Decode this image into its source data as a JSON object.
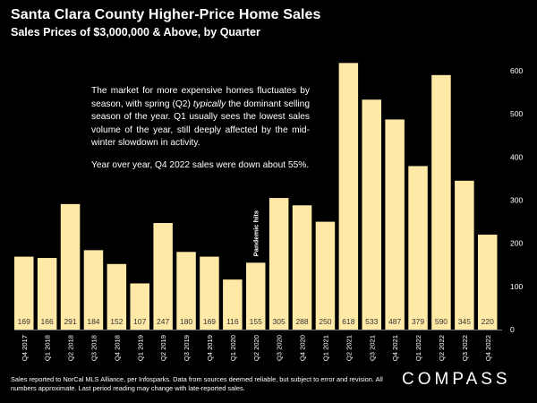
{
  "header": {
    "title": "Santa Clara County Higher-Price Home Sales",
    "subtitle": "Sales Prices of $3,000,000 & Above, by Quarter"
  },
  "annotation": {
    "paragraph1_pre": "The market for more expensive homes fluctuates by season, with spring (Q2) ",
    "paragraph1_emph": "typically",
    "paragraph1_post": " the dominant selling season of the year. Q1 usually sees the lowest sales volume of the year, still deeply affected by the mid-winter slowdown in activity.",
    "paragraph2": "Year over year, Q4 2022 sales were down about 55%."
  },
  "footnote": "Sales reported to NorCal MLS Alliance, per Infosparks. Data from sources deemed reliable, but subject to error and revision. All numbers approximate. Last period reading may change with late-reported sales.",
  "brand": {
    "logo_text": "COMPASS"
  },
  "colors": {
    "background": "#000000",
    "bar": "#FFE9A6",
    "text": "#FFFFFF",
    "label_text": "#333333"
  },
  "chart_data": {
    "type": "bar",
    "categories": [
      "Q4 2017",
      "Q1 2018",
      "Q2 2018",
      "Q3 2018",
      "Q4 2018",
      "Q1 2019",
      "Q2 2019",
      "Q3 2019",
      "Q4 2019",
      "Q1 2020",
      "Q2 2020",
      "Q3 2020",
      "Q4 2020",
      "Q1 2021",
      "Q2 2021",
      "Q3 2021",
      "Q4 2021",
      "Q1 2022",
      "Q2 2022",
      "Q3 2022",
      "Q4 2022"
    ],
    "values": [
      169,
      166,
      291,
      184,
      152,
      107,
      247,
      180,
      169,
      116,
      155,
      305,
      288,
      250,
      618,
      533,
      487,
      379,
      590,
      345,
      220
    ],
    "title": "Santa Clara County Higher-Price Home Sales",
    "subtitle": "Sales Prices of $3,000,000 & Above, by Quarter",
    "ylim": [
      0,
      600
    ],
    "yticks": [
      0,
      100,
      200,
      300,
      400,
      500,
      600
    ],
    "grid": false,
    "y_axis_position": "right",
    "data_labels": "inside-bottom",
    "annotations": [
      {
        "category": "Q2 2020",
        "text": "Pandemic hits",
        "orientation": "vertical"
      }
    ]
  }
}
